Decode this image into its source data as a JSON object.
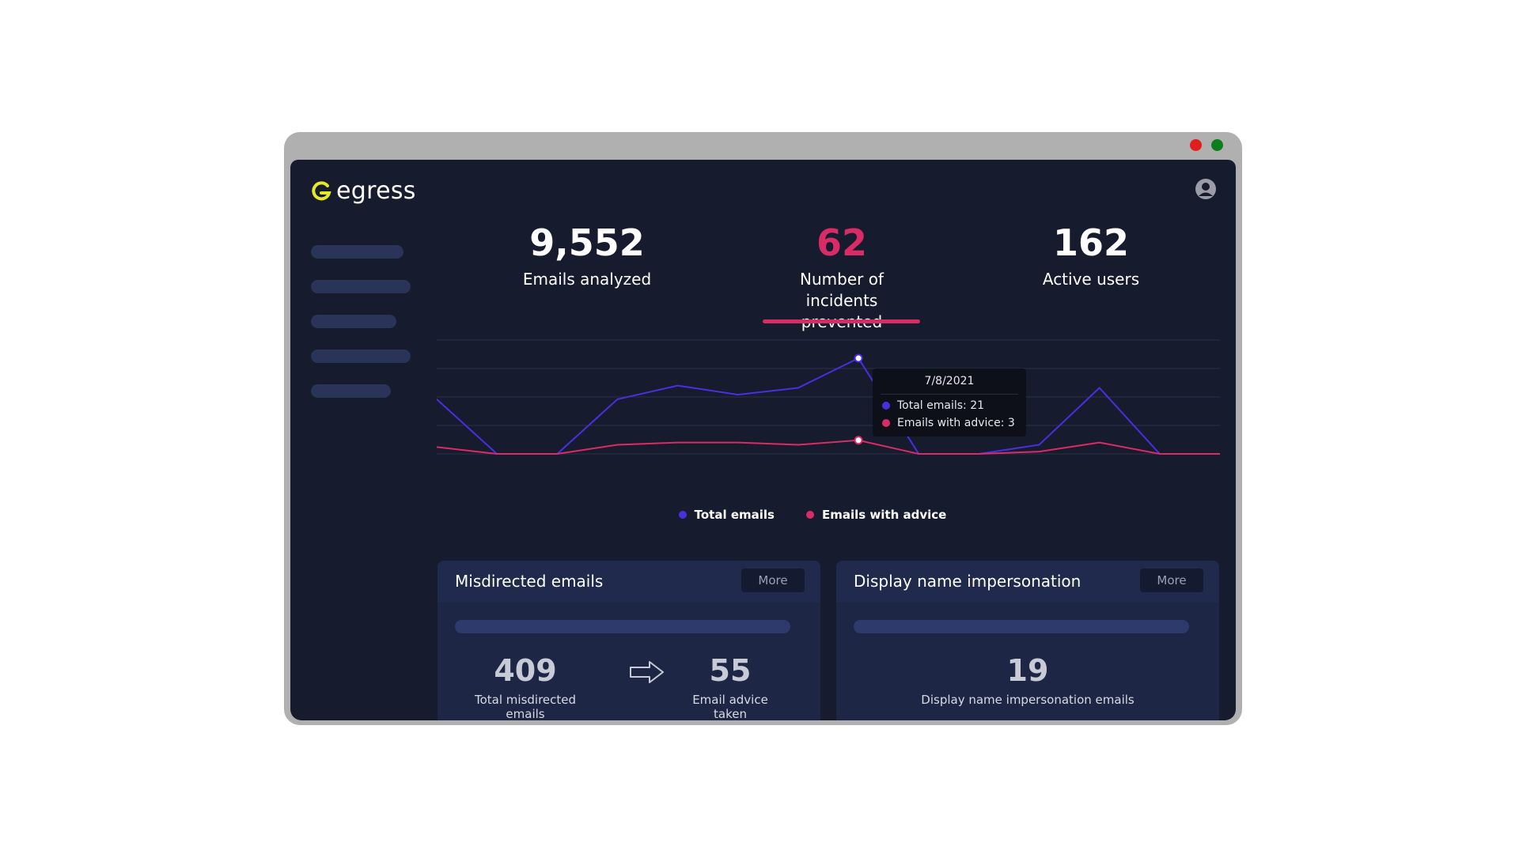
{
  "window": {
    "controls": [
      {
        "name": "close",
        "color": "#e01e1e"
      },
      {
        "name": "maximize",
        "color": "#0e7d1b"
      }
    ]
  },
  "app": {
    "logo_text": "egress",
    "logo_color": "#e4e92a",
    "icons": {
      "logo": "egress-logo-icon",
      "user": "user-avatar-icon"
    }
  },
  "stats": [
    {
      "value": "9,552",
      "label": "Emails analyzed",
      "color": "#ffffff"
    },
    {
      "value": "62",
      "label": "Number of incidents prevented",
      "color": "#d92b66",
      "selected": true
    },
    {
      "value": "162",
      "label": "Active users",
      "color": "#ffffff"
    }
  ],
  "chart_data": {
    "type": "line",
    "grid": true,
    "legend_position": "bottom-center",
    "ylim": [
      0,
      25
    ],
    "series": [
      {
        "name": "Total emails",
        "color": "#4a2fe0",
        "values": [
          12,
          0,
          0,
          12,
          15,
          13,
          14.5,
          21,
          0,
          0,
          2,
          14.5,
          0,
          0
        ]
      },
      {
        "name": "Emails with advice",
        "color": "#d92b66",
        "values": [
          1.5,
          0,
          0,
          2,
          2.5,
          2.5,
          2,
          3,
          0,
          0,
          0.5,
          2.5,
          0,
          0
        ]
      }
    ],
    "highlight_index": 7,
    "tooltip": {
      "date": "7/8/2021",
      "rows": [
        "Total emails: 21",
        "Emails with advice: 3"
      ]
    }
  },
  "legend": [
    "Total emails",
    "Emails with advice"
  ],
  "cards": [
    {
      "title": "Misdirected emails",
      "more_label": "More",
      "metrics": [
        {
          "value": "409",
          "label": "Total misdirected emails"
        },
        {
          "value": "55",
          "label": "Email advice taken"
        }
      ],
      "arrow_icon": "right-arrow-icon"
    },
    {
      "title": "Display name impersonation",
      "more_label": "More",
      "metrics": [
        {
          "value": "19",
          "label": "Display name impersonation emails"
        }
      ]
    }
  ]
}
